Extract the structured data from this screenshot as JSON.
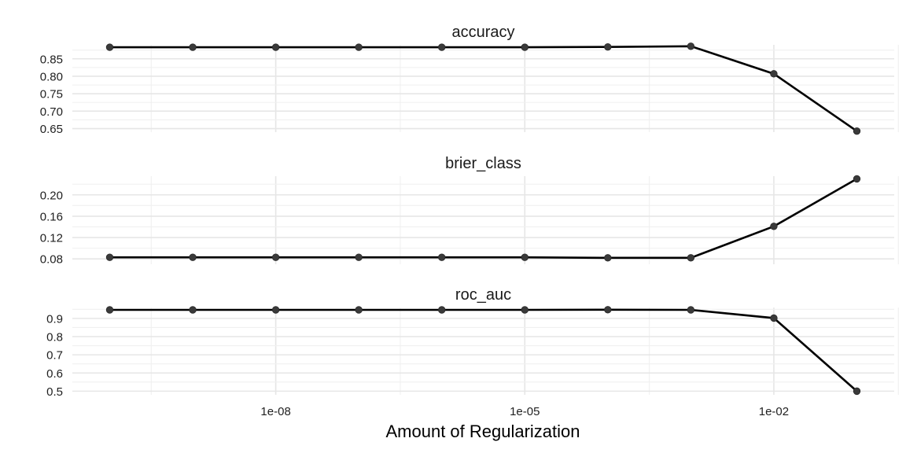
{
  "chart_data": [
    {
      "type": "line",
      "title": "accuracy",
      "xlabel": "Amount of Regularization",
      "ylabel": "",
      "x_scale": "log10",
      "x": [
        1e-10,
        1e-09,
        1e-08,
        1e-07,
        1e-06,
        1e-05,
        0.0001,
        0.001,
        0.01,
        0.1
      ],
      "y": [
        0.883,
        0.883,
        0.883,
        0.883,
        0.883,
        0.883,
        0.884,
        0.886,
        0.807,
        0.643
      ],
      "ylim": [
        0.64,
        0.89
      ],
      "xlim": [
        1e-10,
        0.1
      ],
      "x_ticks": [
        "1e-08",
        "1e-05",
        "1e-02"
      ],
      "y_ticks": [
        "0.65",
        "0.70",
        "0.75",
        "0.80",
        "0.85"
      ],
      "grid": true
    },
    {
      "type": "line",
      "title": "brier_class",
      "xlabel": "Amount of Regularization",
      "ylabel": "",
      "x_scale": "log10",
      "x": [
        1e-10,
        1e-09,
        1e-08,
        1e-07,
        1e-06,
        1e-05,
        0.0001,
        0.001,
        0.01,
        0.1
      ],
      "y": [
        0.083,
        0.083,
        0.083,
        0.083,
        0.083,
        0.083,
        0.082,
        0.082,
        0.141,
        0.23
      ],
      "ylim": [
        0.07,
        0.235
      ],
      "xlim": [
        1e-10,
        0.1
      ],
      "x_ticks": [
        "1e-08",
        "1e-05",
        "1e-02"
      ],
      "y_ticks": [
        "0.08",
        "0.12",
        "0.16",
        "0.20"
      ],
      "grid": true
    },
    {
      "type": "line",
      "title": "roc_auc",
      "xlabel": "Amount of Regularization",
      "ylabel": "",
      "x_scale": "log10",
      "x": [
        1e-10,
        1e-09,
        1e-08,
        1e-07,
        1e-06,
        1e-05,
        0.0001,
        0.001,
        0.01,
        0.1
      ],
      "y": [
        0.947,
        0.947,
        0.947,
        0.947,
        0.947,
        0.947,
        0.948,
        0.947,
        0.902,
        0.5
      ],
      "ylim": [
        0.48,
        0.96
      ],
      "xlim": [
        1e-10,
        0.1
      ],
      "x_ticks": [
        "1e-08",
        "1e-05",
        "1e-02"
      ],
      "y_ticks": [
        "0.5",
        "0.6",
        "0.7",
        "0.8",
        "0.9"
      ],
      "grid": true
    }
  ],
  "colors": {
    "line": "#000000",
    "point": "#3a3a3a",
    "grid_major": "#e6e6e6",
    "grid_minor": "#f0f0f0",
    "background": "#ffffff"
  }
}
